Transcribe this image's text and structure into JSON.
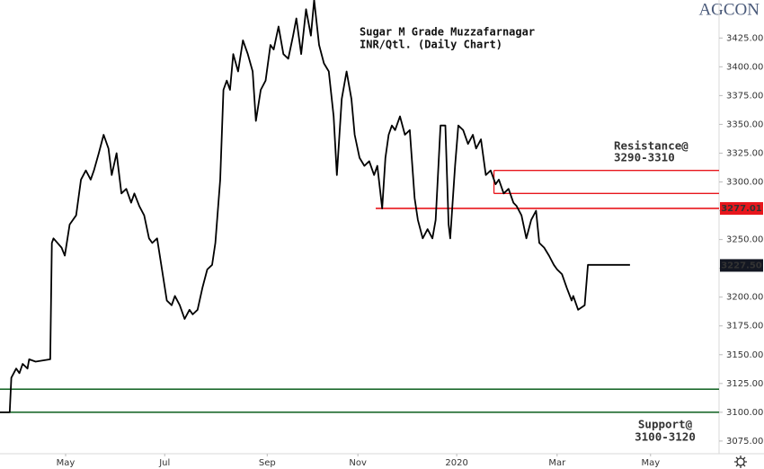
{
  "logo": "AGCON",
  "chart_data": {
    "type": "line",
    "title": "Sugar M Grade Muzzafarnagar",
    "subtitle": "INR/Qtl. (Daily Chart)",
    "x": [
      0,
      6,
      7,
      10,
      12,
      14,
      17,
      18,
      22,
      31,
      32,
      33,
      38,
      40,
      43,
      47,
      50,
      53,
      56,
      58,
      61,
      64,
      67,
      69,
      72,
      75,
      78,
      81,
      83,
      86,
      89,
      92,
      94,
      97,
      100,
      103,
      106,
      108,
      111,
      114,
      117,
      119,
      122,
      125,
      128,
      131,
      133,
      136,
      138,
      140,
      142,
      144,
      147,
      150,
      153,
      156,
      158,
      161,
      164,
      167,
      169,
      172,
      175,
      178,
      181,
      183,
      186,
      189,
      192,
      194,
      197,
      200,
      203,
      206,
      208,
      211,
      214,
      217,
      219,
      222,
      225,
      228,
      231,
      233,
      236,
      238,
      240,
      242,
      244,
      247,
      250,
      253,
      256,
      258,
      261,
      264,
      267,
      269,
      272,
      275,
      277,
      278,
      281,
      283,
      286,
      289,
      292,
      294,
      297,
      300,
      303,
      306,
      308,
      311,
      314,
      317,
      319,
      322,
      325,
      328,
      331,
      333,
      336,
      339,
      342,
      344,
      347,
      350,
      353,
      354,
      357,
      361,
      363,
      389
    ],
    "series": [
      {
        "name": "Sugar M Grade Muzzafarnagar",
        "color": "#000000",
        "values": [
          3100,
          3100,
          3130,
          3138,
          3134,
          3142,
          3138,
          3146,
          3144,
          3146,
          3247,
          3251,
          3243,
          3236,
          3263,
          3271,
          3302,
          3310,
          3302,
          3310,
          3325,
          3341,
          3329,
          3306,
          3325,
          3290,
          3294,
          3282,
          3290,
          3279,
          3271,
          3251,
          3247,
          3251,
          3224,
          3197,
          3193,
          3201,
          3193,
          3181,
          3189,
          3185,
          3189,
          3208,
          3224,
          3228,
          3247,
          3302,
          3380,
          3388,
          3380,
          3411,
          3396,
          3423,
          3411,
          3396,
          3353,
          3380,
          3388,
          3419,
          3415,
          3435,
          3411,
          3407,
          3427,
          3442,
          3411,
          3450,
          3427,
          3458,
          3419,
          3403,
          3396,
          3357,
          3306,
          3372,
          3396,
          3372,
          3341,
          3321,
          3314,
          3318,
          3306,
          3314,
          3277,
          3321,
          3341,
          3349,
          3345,
          3357,
          3341,
          3345,
          3286,
          3267,
          3251,
          3259,
          3251,
          3267,
          3349,
          3349,
          3263,
          3251,
          3314,
          3349,
          3345,
          3333,
          3341,
          3329,
          3337,
          3306,
          3310,
          3298,
          3302,
          3290,
          3294,
          3282,
          3279,
          3271,
          3251,
          3267,
          3275,
          3247,
          3243,
          3236,
          3228,
          3224,
          3220,
          3208,
          3197,
          3201,
          3189,
          3193,
          3228,
          3228
        ]
      }
    ],
    "xlim": [
      0,
      444
    ],
    "xticks": [
      {
        "value": 40.5,
        "label": "May"
      },
      {
        "value": 101.7,
        "label": "Jul"
      },
      {
        "value": 165,
        "label": "Sep"
      },
      {
        "value": 221,
        "label": "Nov"
      },
      {
        "value": 282,
        "label": "2020"
      },
      {
        "value": 344,
        "label": "Mar"
      },
      {
        "value": 401.7,
        "label": "May"
      }
    ],
    "ylim": [
      3064,
      3458
    ],
    "yticks": [
      {
        "value": 3075,
        "label": "3075.00"
      },
      {
        "value": 3100,
        "label": "3100.00"
      },
      {
        "value": 3125,
        "label": "3125.00"
      },
      {
        "value": 3150,
        "label": "3150.00"
      },
      {
        "value": 3175,
        "label": "3175.00"
      },
      {
        "value": 3200,
        "label": "3200.00"
      },
      {
        "value": 3225,
        "label": "3225.00"
      },
      {
        "value": 3250,
        "label": "3250.00"
      },
      {
        "value": 3275,
        "label": "3275.00"
      },
      {
        "value": 3300,
        "label": "3300.00"
      },
      {
        "value": 3325,
        "label": "3325.00"
      },
      {
        "value": 3350,
        "label": "3350.00"
      },
      {
        "value": 3375,
        "label": "3375.00"
      },
      {
        "value": 3400,
        "label": "3400.00"
      },
      {
        "value": 3425,
        "label": "3425.00"
      }
    ],
    "level": {
      "value": 3277.01,
      "label": "3277.01",
      "x_start": 232,
      "color": "#e8161c"
    },
    "last_price": {
      "value": 3227.5,
      "label": "3227.50",
      "color": "#131722"
    },
    "resistance": {
      "label": "Resistance@",
      "range_label": "3290-3310",
      "low": 3290,
      "high": 3310,
      "x_start": 305,
      "color": "#e8161c"
    },
    "support": {
      "label": "Support@",
      "range_label": "3100-3120",
      "low": 3100,
      "high": 3120,
      "x_start": 0,
      "color": "#1e6b2e"
    }
  }
}
